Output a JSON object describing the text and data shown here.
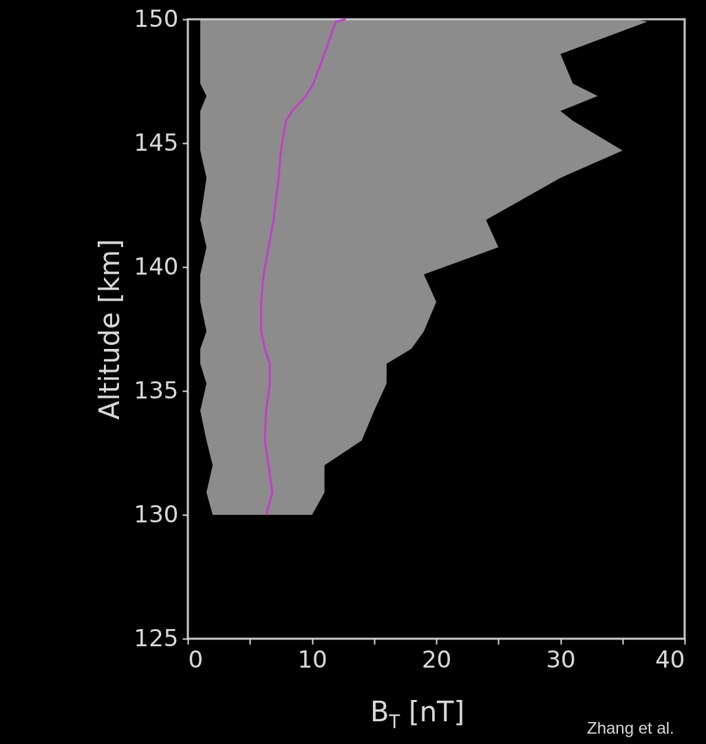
{
  "chart_data": {
    "type": "line",
    "orientation": "horizontal",
    "xlabel": "B$_{T}$ [nT]",
    "ylabel": "Altitude [km]",
    "annotations": [
      "Zhang et al."
    ],
    "xlim": [
      0,
      40
    ],
    "ylim": [
      125,
      150
    ],
    "xticks": [
      0,
      {
        "value": 5,
        "label": null
      },
      10,
      {
        "value": 15,
        "label": null
      },
      20,
      {
        "value": 25,
        "label": null
      },
      30,
      {
        "value": 35,
        "label": null
      },
      40
    ],
    "yticks": [
      125,
      130,
      135,
      140,
      145,
      150
    ],
    "series": [
      {
        "color": "#c040c8",
        "x": [
          130.0,
          130.9,
          132.0,
          133.0,
          134.2,
          135.3,
          136.1,
          136.7,
          137.4,
          138.6,
          139.7,
          140.8,
          141.9,
          143.6,
          144.7,
          145.9,
          146.3,
          146.9,
          147.4,
          148.6,
          149.9,
          150.0
        ],
        "values": [
          6.3,
          6.8,
          6.5,
          6.2,
          6.3,
          6.6,
          6.6,
          6.2,
          5.9,
          5.9,
          6.1,
          6.5,
          6.9,
          7.3,
          7.5,
          7.9,
          8.4,
          9.5,
          10.1,
          11.0,
          11.9,
          12.7
        ],
        "lower": [
          2,
          1.5,
          2,
          1.5,
          1,
          1.5,
          1,
          1,
          1.5,
          1,
          1,
          1.5,
          1,
          1.5,
          1,
          1,
          1,
          1.5,
          1,
          1,
          1,
          1
        ],
        "upper": [
          10,
          11,
          11,
          14,
          15,
          16,
          16,
          18,
          19,
          20,
          19,
          25,
          24,
          30,
          35,
          31,
          30,
          33,
          31,
          30,
          37,
          36
        ]
      }
    ]
  }
}
